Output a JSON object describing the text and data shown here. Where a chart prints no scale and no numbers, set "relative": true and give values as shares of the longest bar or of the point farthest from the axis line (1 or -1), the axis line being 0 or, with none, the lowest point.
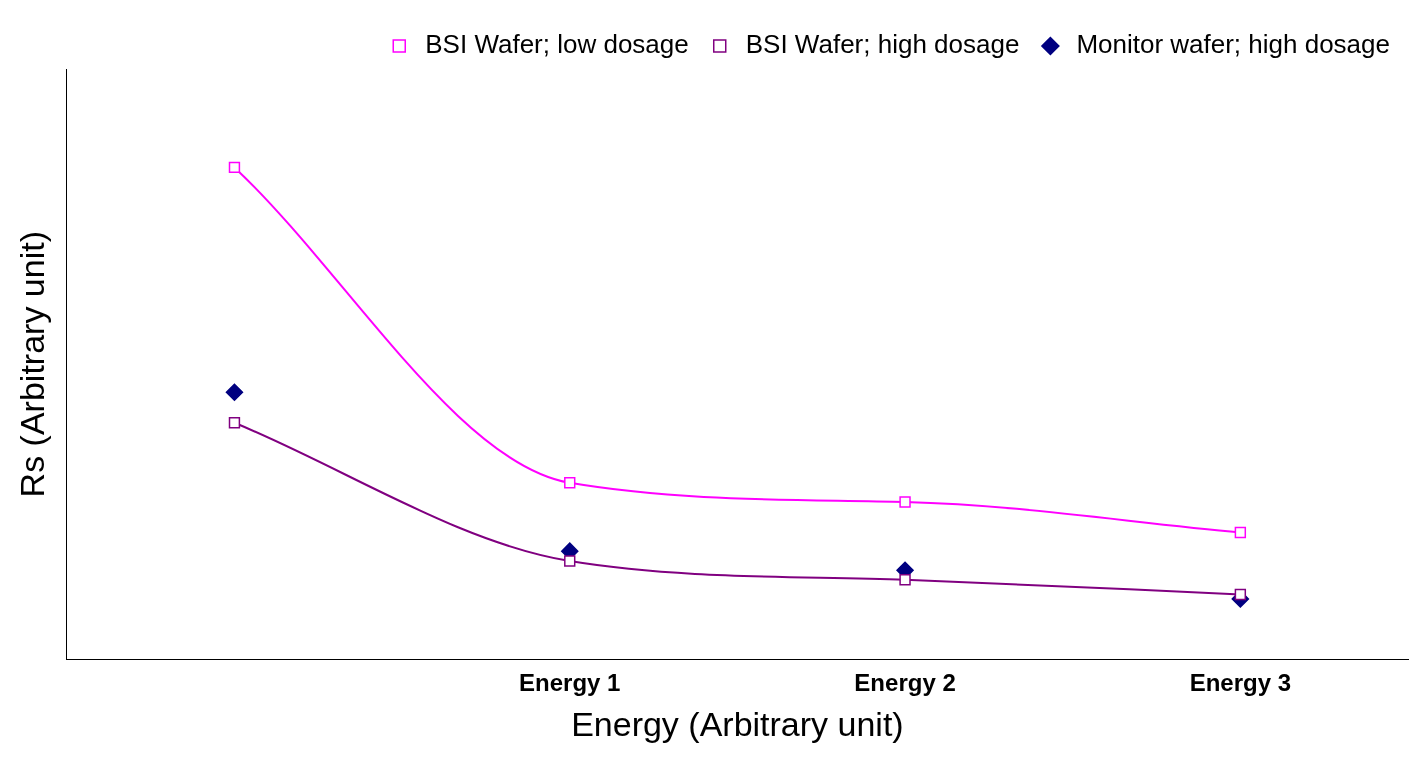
{
  "chart_data": {
    "type": "line",
    "relative": true,
    "xlabel": "Energy (Arbitrary unit)",
    "ylabel": "Rs (Arbitrary unit)",
    "categories": [
      null,
      "Energy 1",
      "Energy 2",
      "Energy 3"
    ],
    "series": [
      {
        "name": "BSI Wafer; low dosage",
        "color": "#ff00ff",
        "marker": "square",
        "values": [
          1,
          0.359,
          0.32,
          0.258
        ]
      },
      {
        "name": "BSI Wafer; high dosage",
        "color": "#800080",
        "marker": "square",
        "values": [
          0.481,
          0.2,
          0.162,
          0.132
        ]
      },
      {
        "name": "Monitor wafer; high dosage",
        "type": "scatter",
        "color": "#000080",
        "marker": "diamond",
        "values": [
          0.543,
          0.22,
          0.181,
          0.123
        ]
      }
    ],
    "legend": "top right"
  }
}
